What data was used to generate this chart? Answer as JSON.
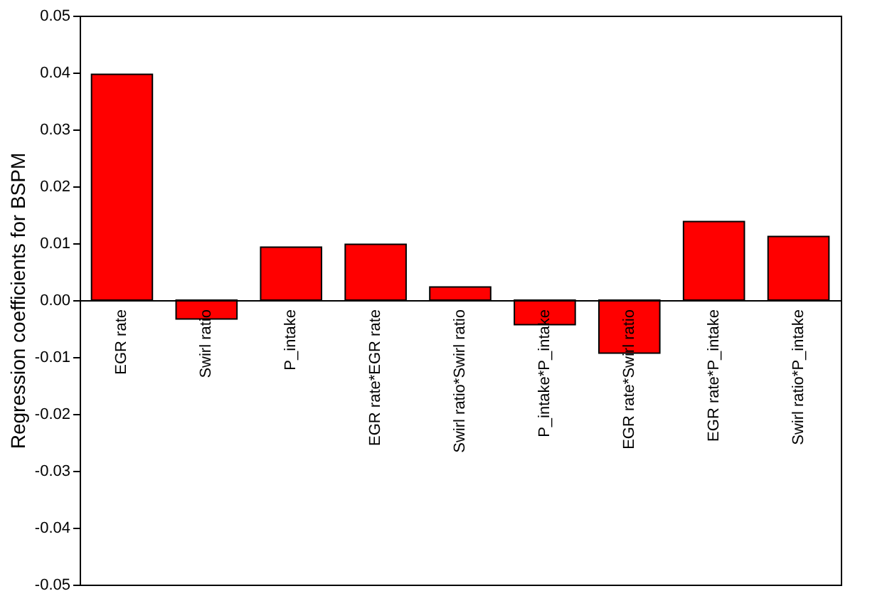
{
  "chart_data": {
    "type": "bar",
    "ylabel": "Regression coefficients for BSPM",
    "categories": [
      "EGR rate",
      "Swirl ratio",
      "P_intake",
      "EGR rate*EGR rate",
      "Swirl ratio*Swirl ratio",
      "P_intake*P_intake",
      "EGR rate*Swirl ratio",
      "EGR rate*P_intake",
      "Swirl ratio*P_intake"
    ],
    "values": [
      0.0397,
      -0.0033,
      0.0093,
      0.0098,
      0.0023,
      -0.0043,
      -0.0093,
      0.0138,
      0.0112
    ],
    "color": "#ff0000",
    "ylim": [
      -0.05,
      0.05
    ],
    "yticks": [
      {
        "value": -0.05,
        "label": "-0.05"
      },
      {
        "value": -0.04,
        "label": "-0.04"
      },
      {
        "value": -0.03,
        "label": "-0.03"
      },
      {
        "value": -0.02,
        "label": "-0.02"
      },
      {
        "value": -0.01,
        "label": "-0.01"
      },
      {
        "value": 0,
        "label": "0.00"
      },
      {
        "value": 0.01,
        "label": "0.01"
      },
      {
        "value": 0.02,
        "label": "0.02"
      },
      {
        "value": 0.03,
        "label": "0.03"
      },
      {
        "value": 0.04,
        "label": "0.04"
      },
      {
        "value": 0.05,
        "label": "0.05"
      }
    ],
    "grid": false
  }
}
